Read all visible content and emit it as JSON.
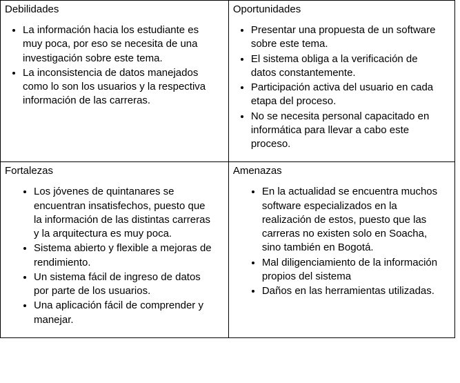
{
  "swot": {
    "q1": {
      "title": "Debilidades",
      "items": [
        "La información hacia los estudiante es muy poca, por eso se necesita de una investigación sobre este tema.",
        "La inconsistencia de datos manejados como lo son los usuarios y la respectiva información de las carreras."
      ]
    },
    "q2": {
      "title": "Oportunidades",
      "items": [
        "Presentar una propuesta de un software sobre este tema.",
        "El sistema obliga a la verificación de datos constantemente.",
        "Participación activa del usuario en cada etapa del proceso.",
        "No se necesita personal capacitado en informática para llevar a cabo este proceso."
      ]
    },
    "q3": {
      "title": "Fortalezas",
      "items": [
        "Los jóvenes de quintanares se encuentran insatisfechos, puesto que la información de las distintas carreras y la arquitectura es muy poca.",
        "Sistema abierto y flexible a mejoras de rendimiento.",
        "Un sistema fácil de ingreso de datos por parte de los usuarios.",
        "Una aplicación fácil de comprender y manejar."
      ]
    },
    "q4": {
      "title": "Amenazas",
      "items": [
        "En la actualidad se encuentra muchos software especializados en la realización de estos, puesto que las carreras no existen solo en Soacha, sino también en Bogotá.",
        "Mal diligenciamiento de la información  propios del sistema",
        "Daños en las herramientas utilizadas."
      ]
    }
  }
}
